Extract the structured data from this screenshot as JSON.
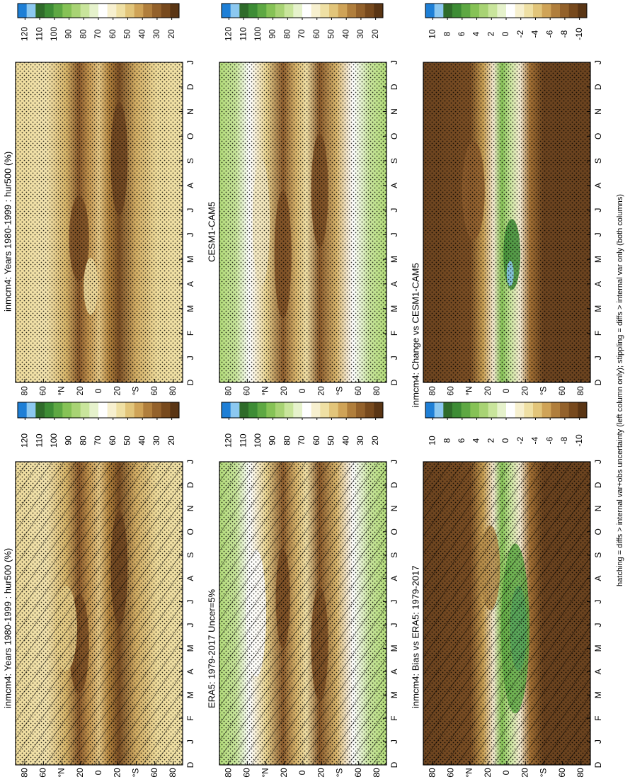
{
  "chart_data": [
    {
      "type": "contour",
      "title": "inmcm4: Years 1980-1999 : hur500 (%)",
      "categories": [
        "D",
        "J",
        "F",
        "M",
        "A",
        "M",
        "J",
        "J",
        "A",
        "S",
        "O",
        "N",
        "D",
        "J"
      ],
      "xlim": [
        90,
        -90
      ],
      "xticks": [
        80,
        60,
        {
          "value": 40,
          "label": "°N"
        },
        20,
        0,
        {
          "value": -20,
          "label": "20"
        },
        {
          "value": -40,
          "label": "°S"
        },
        {
          "value": -60,
          "label": "60"
        },
        {
          "value": -80,
          "label": "80"
        }
      ],
      "colorbar": {
        "lim": [
          125,
          15
        ],
        "ticks": [
          120,
          110,
          100,
          90,
          80,
          70,
          60,
          50,
          40,
          30,
          20
        ],
        "colors": [
          "#1e7fd6",
          "#8cc8f0",
          "#2f6b2a",
          "#3d8c35",
          "#5ea843",
          "#86c256",
          "#a8d374",
          "#c9e59c",
          "#e6f2cc",
          "#ffffff",
          "#f7f0cf",
          "#efe0a4",
          "#e2c57a",
          "#cfa357",
          "#b07e3c",
          "#93612b",
          "#77491d",
          "#5a3514"
        ]
      }
    },
    {
      "type": "contour",
      "title": "inmcm4: Years 1980-1999 : hur500 (%)",
      "categories": [
        "D",
        "J",
        "F",
        "M",
        "A",
        "M",
        "J",
        "J",
        "A",
        "S",
        "O",
        "N",
        "D",
        "J"
      ],
      "xlim": [
        90,
        -90
      ],
      "xticks": [
        80,
        60,
        {
          "value": 40,
          "label": "°N"
        },
        20,
        0,
        {
          "value": -20,
          "label": "20"
        },
        {
          "value": -40,
          "label": "°S"
        },
        {
          "value": -60,
          "label": "60"
        },
        {
          "value": -80,
          "label": "80"
        }
      ],
      "colorbar": {
        "lim": [
          125,
          15
        ],
        "ticks": [
          120,
          110,
          100,
          90,
          80,
          70,
          60,
          50,
          40,
          30,
          20
        ],
        "colors": [
          "#1e7fd6",
          "#8cc8f0",
          "#2f6b2a",
          "#3d8c35",
          "#5ea843",
          "#86c256",
          "#a8d374",
          "#c9e59c",
          "#e6f2cc",
          "#ffffff",
          "#f7f0cf",
          "#efe0a4",
          "#e2c57a",
          "#cfa357",
          "#b07e3c",
          "#93612b",
          "#77491d",
          "#5a3514"
        ]
      }
    },
    {
      "type": "contour",
      "title": "CESM1-CAM5",
      "categories": [
        "D",
        "J",
        "F",
        "M",
        "A",
        "M",
        "J",
        "J",
        "A",
        "S",
        "O",
        "N",
        "D",
        "J"
      ],
      "xlim": [
        90,
        -90
      ],
      "xticks": [
        80,
        60,
        {
          "value": 40,
          "label": "°N"
        },
        20,
        0,
        {
          "value": -20,
          "label": "20"
        },
        {
          "value": -40,
          "label": "°S"
        },
        {
          "value": -60,
          "label": "60"
        },
        {
          "value": -80,
          "label": "80"
        }
      ],
      "colorbar": {
        "lim": [
          125,
          15
        ],
        "ticks": [
          120,
          110,
          100,
          90,
          80,
          70,
          60,
          50,
          40,
          30,
          20
        ],
        "colors": [
          "#1e7fd6",
          "#8cc8f0",
          "#2f6b2a",
          "#3d8c35",
          "#5ea843",
          "#86c256",
          "#a8d374",
          "#c9e59c",
          "#e6f2cc",
          "#ffffff",
          "#f7f0cf",
          "#efe0a4",
          "#e2c57a",
          "#cfa357",
          "#b07e3c",
          "#93612b",
          "#77491d",
          "#5a3514"
        ]
      }
    },
    {
      "type": "contour",
      "title": "ERA5: 1979-2017 Uncer=5%",
      "categories": [
        "D",
        "J",
        "F",
        "M",
        "A",
        "M",
        "J",
        "J",
        "A",
        "S",
        "O",
        "N",
        "D",
        "J"
      ],
      "xlim": [
        90,
        -90
      ],
      "xticks": [
        80,
        60,
        {
          "value": 40,
          "label": "°N"
        },
        20,
        0,
        {
          "value": -20,
          "label": "20"
        },
        {
          "value": -40,
          "label": "°S"
        },
        {
          "value": -60,
          "label": "60"
        },
        {
          "value": -80,
          "label": "80"
        }
      ],
      "colorbar": {
        "lim": [
          125,
          15
        ],
        "ticks": [
          120,
          110,
          100,
          90,
          80,
          70,
          60,
          50,
          40,
          30,
          20
        ],
        "colors": [
          "#1e7fd6",
          "#8cc8f0",
          "#2f6b2a",
          "#3d8c35",
          "#5ea843",
          "#86c256",
          "#a8d374",
          "#c9e59c",
          "#e6f2cc",
          "#ffffff",
          "#f7f0cf",
          "#efe0a4",
          "#e2c57a",
          "#cfa357",
          "#b07e3c",
          "#93612b",
          "#77491d",
          "#5a3514"
        ]
      }
    },
    {
      "type": "contour",
      "title": "inmcm4: Change vs CESM1-CAM5",
      "categories": [
        "D",
        "J",
        "F",
        "M",
        "A",
        "M",
        "J",
        "J",
        "A",
        "S",
        "O",
        "N",
        "D",
        "J"
      ],
      "xlim": [
        90,
        -90
      ],
      "xticks": [
        80,
        60,
        {
          "value": 40,
          "label": "°N"
        },
        20,
        0,
        {
          "value": -20,
          "label": "20"
        },
        {
          "value": -40,
          "label": "°S"
        },
        {
          "value": -60,
          "label": "60"
        },
        {
          "value": -80,
          "label": "80"
        }
      ],
      "colorbar": {
        "lim": [
          11,
          -11
        ],
        "ticks": [
          10,
          8,
          6,
          4,
          2,
          0,
          -2,
          -4,
          -6,
          -8,
          -10
        ],
        "colors": [
          "#1e7fd6",
          "#8cc8f0",
          "#2f6b2a",
          "#3d8c35",
          "#5ea843",
          "#86c256",
          "#a8d374",
          "#c9e59c",
          "#e6f2cc",
          "#ffffff",
          "#f7f0cf",
          "#efe0a4",
          "#e2c57a",
          "#cfa357",
          "#b07e3c",
          "#93612b",
          "#77491d",
          "#5a3514"
        ]
      }
    },
    {
      "type": "contour",
      "title": "inmcm4: Bias vs ERA5: 1979-2017",
      "categories": [
        "D",
        "J",
        "F",
        "M",
        "A",
        "M",
        "J",
        "J",
        "A",
        "S",
        "O",
        "N",
        "D",
        "J"
      ],
      "xlim": [
        90,
        -90
      ],
      "xticks": [
        80,
        60,
        {
          "value": 40,
          "label": "°N"
        },
        20,
        0,
        {
          "value": -20,
          "label": "20"
        },
        {
          "value": -40,
          "label": "°S"
        },
        {
          "value": -60,
          "label": "60"
        },
        {
          "value": -80,
          "label": "80"
        }
      ],
      "colorbar": {
        "lim": [
          11,
          -11
        ],
        "ticks": [
          10,
          8,
          6,
          4,
          2,
          0,
          -2,
          -4,
          -6,
          -8,
          -10
        ],
        "colors": [
          "#1e7fd6",
          "#8cc8f0",
          "#2f6b2a",
          "#3d8c35",
          "#5ea843",
          "#86c256",
          "#a8d374",
          "#c9e59c",
          "#e6f2cc",
          "#ffffff",
          "#f7f0cf",
          "#efe0a4",
          "#e2c57a",
          "#cfa357",
          "#b07e3c",
          "#93612b",
          "#77491d",
          "#5a3514"
        ]
      }
    }
  ],
  "caption": "hatching = diffs > internal var+obs uncertainty (left column only); stippling = diffs > internal var only (both columns)"
}
